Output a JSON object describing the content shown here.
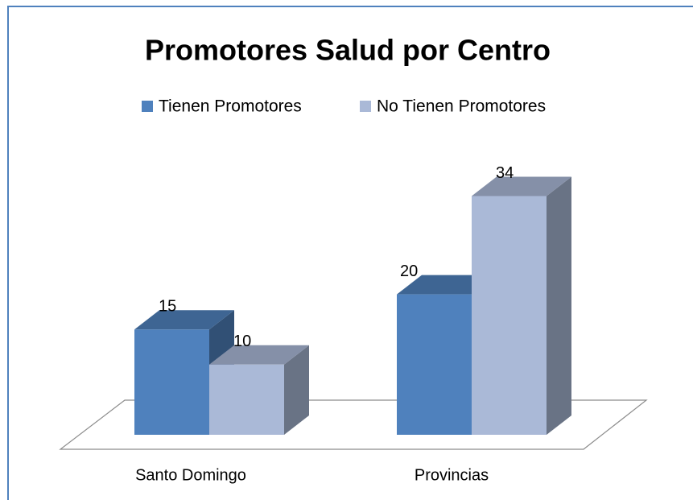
{
  "chart_data": {
    "type": "bar3d",
    "title": "Promotores Salud por Centro",
    "categories": [
      "Santo Domingo",
      "Provincias"
    ],
    "series": [
      {
        "name": "Tienen Promotores",
        "color": "#4f81bd",
        "values": [
          15,
          20
        ]
      },
      {
        "name": "No Tienen Promotores",
        "color": "#aab9d7",
        "values": [
          10,
          34
        ]
      }
    ],
    "legend": "top"
  }
}
